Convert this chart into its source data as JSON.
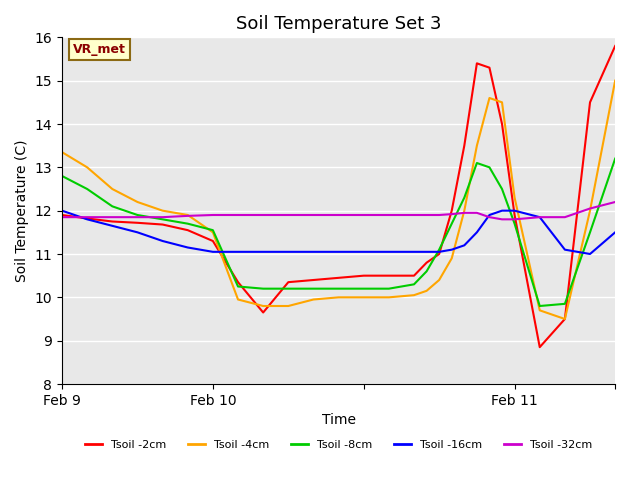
{
  "title": "Soil Temperature Set 3",
  "xlabel": "Time",
  "ylabel": "Soil Temperature (C)",
  "ylim": [
    8.0,
    16.0
  ],
  "yticks": [
    8.0,
    9.0,
    10.0,
    11.0,
    12.0,
    13.0,
    14.0,
    15.0,
    16.0
  ],
  "bg_color": "#e8e8e8",
  "annotation_text": "VR_met",
  "annotation_bg": "#ffffcc",
  "annotation_border": "#8b6914",
  "annotation_text_color": "#8b0000",
  "series": [
    {
      "label": "Tsoil -2cm",
      "color": "#ff0000",
      "x": [
        0,
        4,
        8,
        12,
        16,
        20,
        24,
        28,
        32,
        36,
        40,
        44,
        48,
        52,
        56,
        58,
        60,
        62,
        64,
        66,
        68,
        70,
        72,
        76,
        80,
        84,
        88
      ],
      "y": [
        11.9,
        11.82,
        11.75,
        11.72,
        11.68,
        11.55,
        11.3,
        10.35,
        9.65,
        10.35,
        10.4,
        10.45,
        10.5,
        10.5,
        10.5,
        10.8,
        11.0,
        12.0,
        13.5,
        15.4,
        15.3,
        14.0,
        11.9,
        8.85,
        9.5,
        14.5,
        15.8
      ]
    },
    {
      "label": "Tsoil -4cm",
      "color": "#ffa500",
      "x": [
        0,
        4,
        8,
        12,
        16,
        20,
        24,
        28,
        32,
        36,
        40,
        44,
        48,
        52,
        56,
        58,
        60,
        62,
        64,
        66,
        68,
        70,
        72,
        76,
        80,
        84,
        88
      ],
      "y": [
        13.35,
        13.0,
        12.5,
        12.2,
        12.0,
        11.9,
        11.5,
        9.95,
        9.8,
        9.8,
        9.95,
        10.0,
        10.0,
        10.0,
        10.05,
        10.15,
        10.4,
        10.9,
        12.0,
        13.5,
        14.6,
        14.5,
        12.3,
        9.7,
        9.5,
        12.0,
        15.0
      ]
    },
    {
      "label": "Tsoil -8cm",
      "color": "#00cc00",
      "x": [
        0,
        4,
        8,
        12,
        16,
        20,
        24,
        28,
        32,
        36,
        40,
        44,
        48,
        52,
        56,
        58,
        60,
        62,
        64,
        66,
        68,
        70,
        72,
        76,
        80,
        84,
        88
      ],
      "y": [
        12.8,
        12.5,
        12.1,
        11.9,
        11.8,
        11.7,
        11.55,
        10.25,
        10.2,
        10.2,
        10.2,
        10.2,
        10.2,
        10.2,
        10.3,
        10.6,
        11.1,
        11.7,
        12.3,
        13.1,
        13.0,
        12.5,
        11.7,
        9.8,
        9.85,
        11.5,
        13.2
      ]
    },
    {
      "label": "Tsoil -16cm",
      "color": "#0000ff",
      "x": [
        0,
        4,
        8,
        12,
        16,
        20,
        24,
        28,
        32,
        36,
        40,
        44,
        48,
        52,
        56,
        58,
        60,
        62,
        64,
        66,
        68,
        70,
        72,
        76,
        80,
        84,
        88
      ],
      "y": [
        12.0,
        11.8,
        11.65,
        11.5,
        11.3,
        11.15,
        11.05,
        11.05,
        11.05,
        11.05,
        11.05,
        11.05,
        11.05,
        11.05,
        11.05,
        11.05,
        11.05,
        11.1,
        11.2,
        11.5,
        11.9,
        12.0,
        12.0,
        11.85,
        11.1,
        11.0,
        11.5
      ]
    },
    {
      "label": "Tsoil -32cm",
      "color": "#cc00cc",
      "x": [
        0,
        4,
        8,
        12,
        16,
        20,
        24,
        28,
        32,
        36,
        40,
        44,
        48,
        52,
        56,
        58,
        60,
        62,
        64,
        66,
        68,
        70,
        72,
        76,
        80,
        84,
        88
      ],
      "y": [
        11.85,
        11.85,
        11.85,
        11.85,
        11.85,
        11.88,
        11.9,
        11.9,
        11.9,
        11.9,
        11.9,
        11.9,
        11.9,
        11.9,
        11.9,
        11.9,
        11.9,
        11.92,
        11.95,
        11.95,
        11.85,
        11.8,
        11.8,
        11.85,
        11.85,
        12.05,
        12.2
      ]
    }
  ],
  "xtick_positions": [
    0,
    24,
    48,
    72,
    88
  ],
  "xtick_labels": [
    "Feb 9",
    "Feb 10",
    "",
    "Feb 11",
    ""
  ],
  "xlim": [
    0,
    88
  ]
}
